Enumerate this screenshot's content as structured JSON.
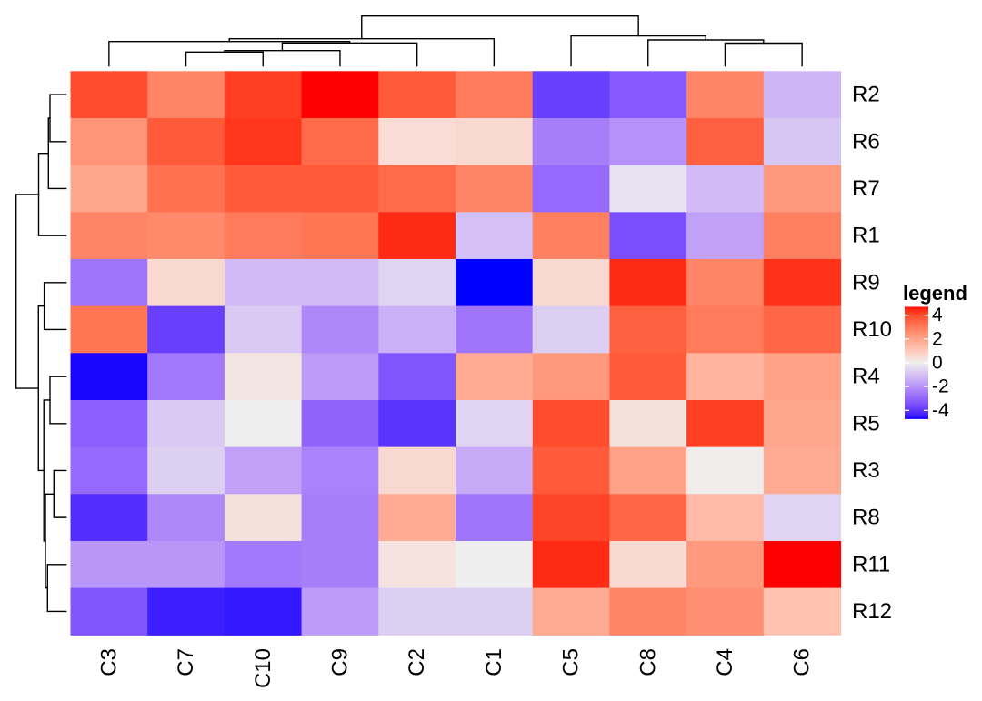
{
  "chart_data": {
    "type": "heatmap",
    "title": "",
    "xlabel": "",
    "ylabel": "",
    "row_labels": [
      "R2",
      "R6",
      "R7",
      "R1",
      "R9",
      "R10",
      "R4",
      "R5",
      "R3",
      "R8",
      "R11",
      "R12"
    ],
    "column_labels": [
      "C3",
      "C7",
      "C10",
      "C9",
      "C2",
      "C1",
      "C5",
      "C8",
      "C4",
      "C6"
    ],
    "values": [
      [
        3.96,
        2.76,
        4.2,
        4.8,
        3.72,
        3.0,
        -3.83,
        -3.26,
        2.76,
        -1.24
      ],
      [
        2.4,
        3.72,
        4.3,
        3.36,
        0.48,
        0.6,
        -2.48,
        -2.03,
        3.6,
        -0.9
      ],
      [
        1.92,
        3.24,
        3.72,
        3.72,
        3.36,
        2.76,
        -2.93,
        -0.23,
        -1.13,
        2.28
      ],
      [
        2.76,
        2.64,
        3.0,
        3.12,
        4.45,
        -1.01,
        2.88,
        -3.49,
        -1.69,
        2.88
      ],
      [
        -2.7,
        0.6,
        -1.13,
        -1.13,
        -0.56,
        -4.7,
        0.6,
        4.45,
        2.76,
        4.35
      ],
      [
        3.12,
        -3.83,
        -0.79,
        -2.25,
        -1.35,
        -2.7,
        -0.68,
        3.6,
        3.0,
        3.48
      ],
      [
        -4.65,
        -2.59,
        0.24,
        -1.8,
        -3.38,
        1.8,
        2.28,
        3.72,
        1.56,
        2.04
      ],
      [
        -3.15,
        -0.79,
        0.0,
        -3.04,
        -4.05,
        -0.56,
        3.96,
        0.36,
        4.2,
        1.92
      ],
      [
        -2.93,
        -0.68,
        -1.69,
        -2.36,
        0.6,
        -1.46,
        3.72,
        2.04,
        0.06,
        1.8
      ],
      [
        -4.16,
        -2.25,
        0.36,
        -2.48,
        1.8,
        -2.7,
        4.08,
        3.48,
        1.44,
        -0.56
      ],
      [
        -1.91,
        -1.91,
        -2.59,
        -2.48,
        0.3,
        0.0,
        4.45,
        0.54,
        2.28,
        4.75
      ],
      [
        -3.38,
        -4.4,
        -4.48,
        -1.8,
        -0.68,
        -0.68,
        1.8,
        2.76,
        2.52,
        1.2
      ]
    ],
    "color_scale": {
      "min": -4.7,
      "mid": 0,
      "max": 4.7,
      "low_color": "#0000FF",
      "mid_color": "#EEEEEE",
      "high_color": "#FF0000",
      "interpolation": "LAB"
    },
    "legend": {
      "title": "legend",
      "position": "right",
      "ticks": [
        4,
        2,
        0,
        -2,
        -4
      ],
      "tick_labels": [
        "4",
        "2",
        "0",
        "-2",
        "-4"
      ]
    },
    "grid": false,
    "column_dendrogram": {
      "position": "top",
      "leaf_order": [
        "C3",
        "C7",
        "C10",
        "C9",
        "C2",
        "C1",
        "C5",
        "C8",
        "C4",
        "C6"
      ],
      "merges": [
        {
          "id": "c_n1",
          "left": "C7",
          "right": "C10",
          "height": 0.277
        },
        {
          "id": "c_n2",
          "left": "c_n1",
          "right": "C9",
          "height": 0.307
        },
        {
          "id": "c_n3",
          "left": "c_n2",
          "right": "C2",
          "height": 0.46
        },
        {
          "id": "c_n4",
          "left": "C3",
          "right": "c_n3",
          "height": 0.489
        },
        {
          "id": "c_n5",
          "left": "c_n4",
          "right": "C1",
          "height": 0.544
        },
        {
          "id": "c_m1",
          "left": "C4",
          "right": "C6",
          "height": 0.456
        },
        {
          "id": "c_m2",
          "left": "C8",
          "right": "c_m1",
          "height": 0.52
        },
        {
          "id": "c_m3",
          "left": "C5",
          "right": "c_m2",
          "height": 0.602
        },
        {
          "id": "c_root",
          "left": "c_n5",
          "right": "c_m3",
          "height": 1.0
        }
      ]
    },
    "row_dendrogram": {
      "position": "left",
      "leaf_order": [
        "R2",
        "R6",
        "R7",
        "R1",
        "R9",
        "R10",
        "R4",
        "R5",
        "R3",
        "R8",
        "R11",
        "R12"
      ],
      "merges": [
        {
          "id": "r_a",
          "left": "R2",
          "right": "R6",
          "height": 0.322
        },
        {
          "id": "r_b",
          "left": "r_a",
          "right": "R7",
          "height": 0.353
        },
        {
          "id": "r_c",
          "left": "r_b",
          "right": "R1",
          "height": 0.549
        },
        {
          "id": "r_d",
          "left": "R9",
          "right": "R10",
          "height": 0.438
        },
        {
          "id": "r_e",
          "left": "R4",
          "right": "R5",
          "height": 0.322
        },
        {
          "id": "r_f",
          "left": "R3",
          "right": "R8",
          "height": 0.244
        },
        {
          "id": "r_g",
          "left": "R11",
          "right": "R12",
          "height": 0.371
        },
        {
          "id": "r_h",
          "left": "r_f",
          "right": "r_g",
          "height": 0.413
        },
        {
          "id": "r_i",
          "left": "r_e",
          "right": "r_h",
          "height": 0.445
        },
        {
          "id": "r_j",
          "left": "r_d",
          "right": "r_i",
          "height": 0.553
        },
        {
          "id": "r_root",
          "left": "r_c",
          "right": "r_j",
          "height": 1.0
        }
      ]
    }
  }
}
